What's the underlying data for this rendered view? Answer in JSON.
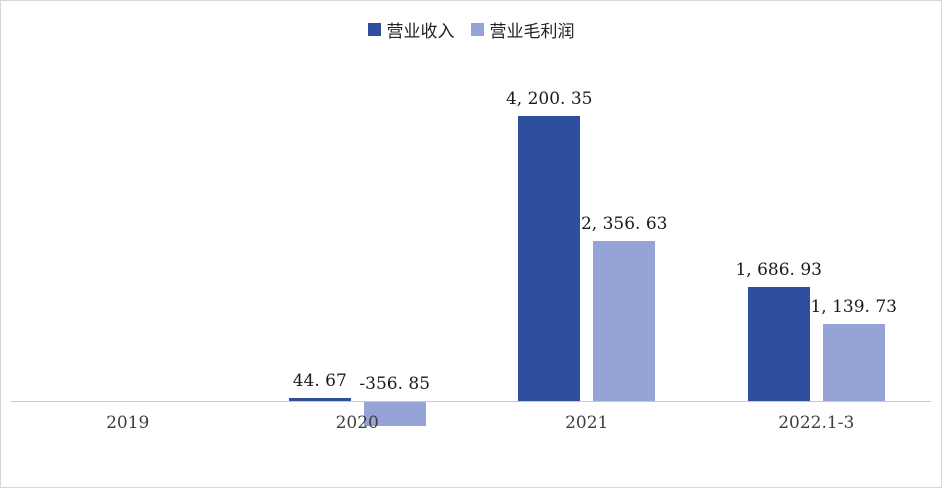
{
  "chart_data": {
    "type": "bar",
    "title": "",
    "categories": [
      "2019",
      "2020",
      "2021",
      "2022.1-3"
    ],
    "series": [
      {
        "name": "营业收入",
        "color": "#2E4E9E",
        "values": [
          null,
          44.67,
          4200.35,
          1686.93
        ],
        "labels": [
          "",
          "44. 67",
          "4, 200. 35",
          "1, 686. 93"
        ]
      },
      {
        "name": "营业毛利润",
        "color": "#95A3D6",
        "values": [
          null,
          -356.85,
          2356.63,
          1139.73
        ],
        "labels": [
          "",
          "-356. 85",
          "2, 356. 63",
          "1, 139. 73"
        ]
      }
    ],
    "legend_position": "top",
    "grid": false,
    "axis_line_color": "#C9C9C9",
    "ylim": [
      -500,
      4600
    ]
  }
}
